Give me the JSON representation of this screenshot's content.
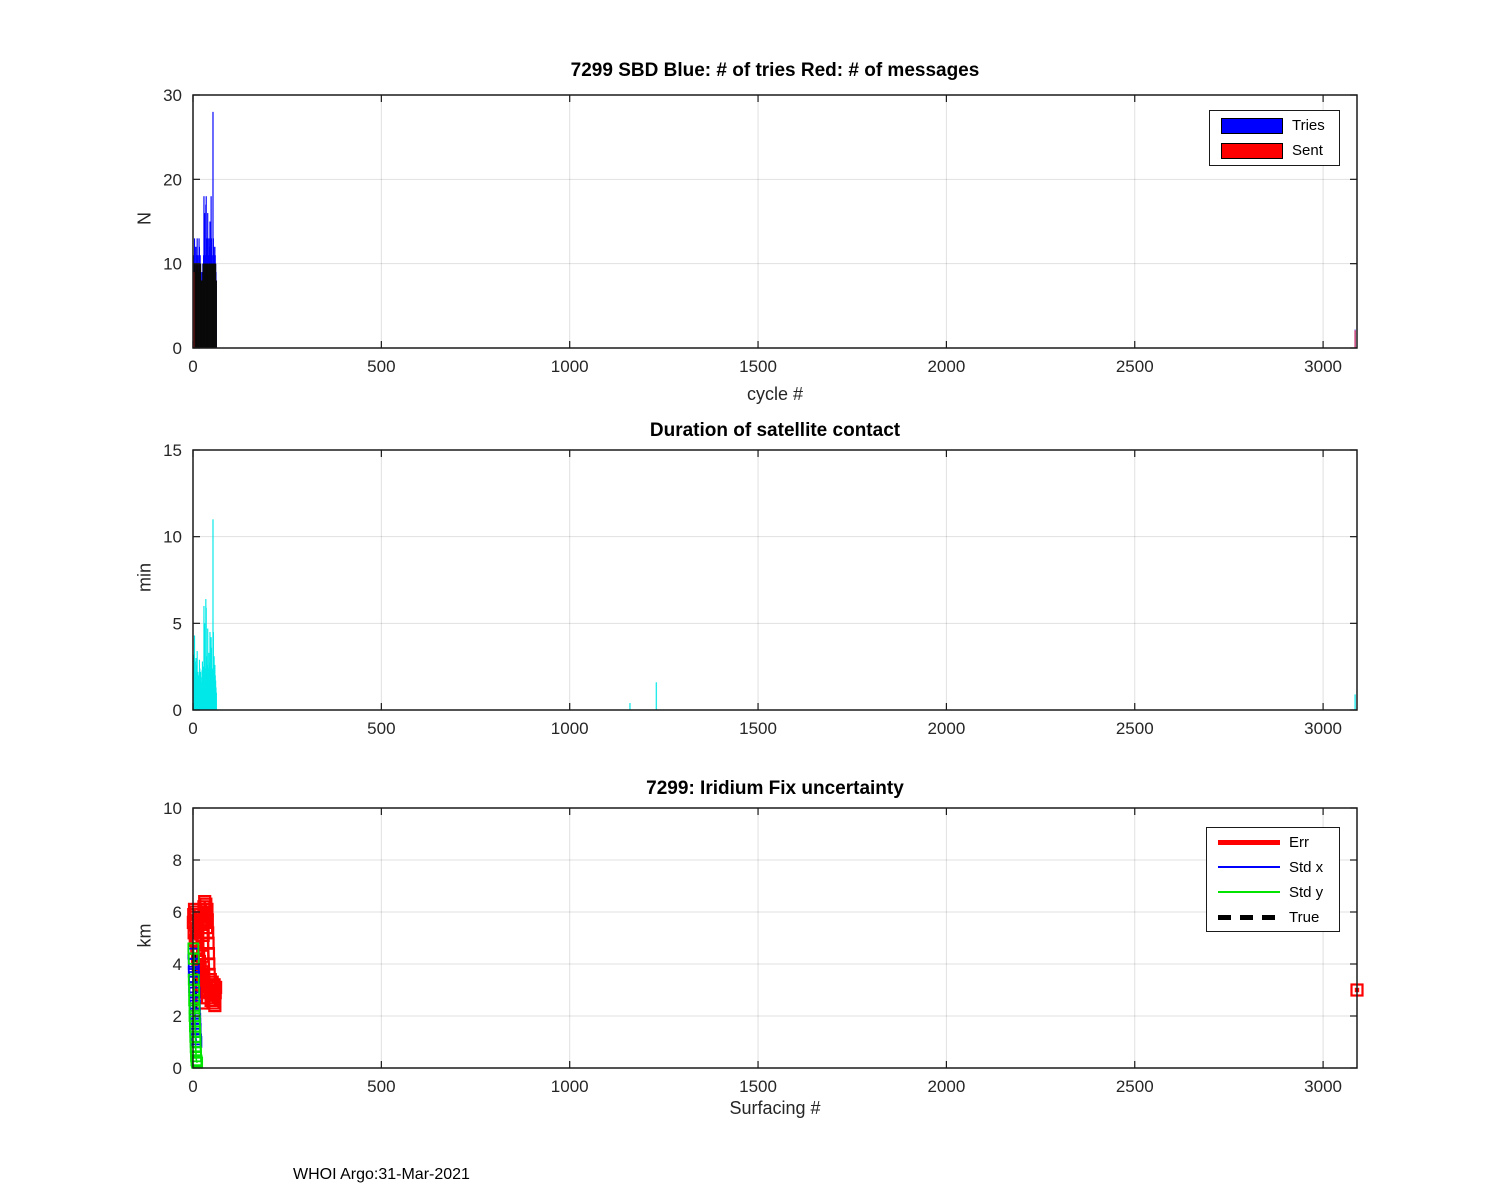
{
  "figure": {
    "footer": "WHOI Argo:31-Mar-2021",
    "background": "#ffffff",
    "axis_color": "#1a1a1a",
    "grid_color": "rgba(0,0,0,0.12)"
  },
  "chart_data": [
    {
      "id": "sbd-tries-messages",
      "type": "bar",
      "title": "7299 SBD  Blue: # of tries   Red: # of messages",
      "xlabel": "cycle #",
      "ylabel": "N",
      "xlim": [
        0,
        3090
      ],
      "ylim": [
        0,
        30
      ],
      "xticks": [
        0,
        500,
        1000,
        1500,
        2000,
        2500,
        3000
      ],
      "yticks": [
        0,
        10,
        20,
        30
      ],
      "grid": true,
      "x": [
        1,
        2,
        3,
        4,
        5,
        6,
        7,
        8,
        9,
        10,
        11,
        12,
        13,
        14,
        15,
        16,
        17,
        18,
        19,
        20,
        21,
        22,
        23,
        24,
        25,
        26,
        27,
        28,
        29,
        30,
        31,
        32,
        33,
        34,
        35,
        36,
        37,
        38,
        39,
        40,
        41,
        42,
        43,
        44,
        45,
        46,
        47,
        48,
        49,
        50,
        51,
        52,
        53,
        54,
        55,
        56,
        57,
        58,
        59,
        60,
        61,
        62
      ],
      "series": [
        {
          "name": "Tries",
          "color": "#0000ff",
          "values": [
            10,
            11,
            10,
            13,
            10,
            9,
            12,
            11,
            10,
            12,
            13,
            11,
            10,
            9,
            11,
            13,
            12,
            10,
            11,
            10,
            8,
            9,
            8,
            8,
            9,
            10,
            10,
            11,
            18,
            15,
            16,
            11,
            10,
            17,
            18,
            12,
            13,
            12,
            16,
            10,
            11,
            13,
            10,
            12,
            15,
            11,
            10,
            18,
            13,
            11,
            10,
            10,
            28,
            13,
            12,
            11,
            10,
            12,
            11,
            10,
            9,
            8
          ]
        },
        {
          "name": "Sent",
          "color": "#ff0000",
          "edge_color": "#000000",
          "values": [
            8,
            9,
            10,
            10,
            9,
            9,
            10,
            10,
            9,
            10,
            10,
            10,
            9,
            9,
            10,
            10,
            10,
            9,
            10,
            10,
            8,
            8,
            8,
            8,
            8,
            9,
            10,
            10,
            10,
            10,
            10,
            10,
            10,
            10,
            10,
            10,
            10,
            10,
            10,
            9,
            10,
            10,
            10,
            10,
            10,
            10,
            10,
            10,
            10,
            10,
            10,
            10,
            10,
            10,
            10,
            10,
            10,
            10,
            10,
            10,
            8,
            8
          ]
        }
      ],
      "outliers": [
        {
          "x": 3085,
          "tries": 2.2,
          "sent": 2.1
        }
      ],
      "legend": {
        "position": "top-right",
        "entries": [
          {
            "label": "Tries",
            "color": "#0000ff",
            "patch": true
          },
          {
            "label": "Sent",
            "color": "#ff0000",
            "patch": true
          }
        ]
      }
    },
    {
      "id": "satellite-contact",
      "type": "bar",
      "title": "Duration of satellite contact",
      "xlabel": "",
      "ylabel": "min",
      "xlim": [
        0,
        3090
      ],
      "ylim": [
        0,
        15
      ],
      "xticks": [
        0,
        500,
        1000,
        1500,
        2000,
        2500,
        3000
      ],
      "yticks": [
        0,
        5,
        10,
        15
      ],
      "grid": true,
      "color": "#00e8e8",
      "x": [
        1,
        2,
        3,
        4,
        5,
        6,
        7,
        8,
        9,
        10,
        11,
        12,
        13,
        14,
        15,
        16,
        17,
        18,
        19,
        20,
        21,
        22,
        23,
        24,
        25,
        26,
        27,
        28,
        29,
        30,
        31,
        32,
        33,
        34,
        35,
        36,
        37,
        38,
        39,
        40,
        41,
        42,
        43,
        44,
        45,
        46,
        47,
        48,
        49,
        50,
        51,
        52,
        53,
        54,
        55,
        56,
        57,
        58,
        59,
        60,
        61,
        62
      ],
      "values": [
        1.8,
        2.5,
        3.2,
        4.3,
        2.2,
        1.5,
        2.8,
        3.0,
        2.1,
        2.6,
        3.4,
        1.9,
        2.2,
        1.6,
        1.2,
        2.0,
        2.9,
        2.4,
        1.8,
        2.2,
        1.4,
        1.6,
        1.9,
        2.3,
        2.8,
        2.2,
        1.7,
        2.5,
        6.0,
        3.5,
        5.0,
        2.4,
        2.0,
        6.4,
        5.9,
        3.1,
        2.6,
        2.3,
        4.7,
        2.0,
        2.4,
        3.3,
        2.7,
        2.2,
        4.5,
        2.6,
        1.9,
        4.2,
        3.6,
        2.4,
        2.0,
        2.3,
        11.0,
        4.5,
        2.7,
        3.1,
        2.2,
        2.6,
        2.0,
        1.7,
        1.3,
        1.0
      ],
      "extra_points": [
        [
          1160,
          0.4
        ],
        [
          1230,
          1.6
        ],
        [
          3085,
          0.9
        ]
      ]
    },
    {
      "id": "iridium-fix-uncertainty",
      "type": "scatter",
      "title": "7299: Iridium Fix uncertainty",
      "xlabel": "Surfacing #",
      "ylabel": "km",
      "xlim": [
        0,
        3090
      ],
      "ylim": [
        0,
        10
      ],
      "xticks": [
        0,
        500,
        1000,
        1500,
        2000,
        2500,
        3000
      ],
      "yticks": [
        0,
        2,
        4,
        6,
        8,
        10
      ],
      "grid": true,
      "series": [
        {
          "name": "Err",
          "color": "#ff0000",
          "marker": "square",
          "marker_size": 11,
          "line_width": 2.4,
          "points": [
            [
              1,
              5.6
            ],
            [
              2,
              5.9
            ],
            [
              3,
              5.2
            ],
            [
              4,
              6.1
            ],
            [
              5,
              5.8
            ],
            [
              6,
              4.9
            ],
            [
              7,
              5.5
            ],
            [
              8,
              6.0
            ],
            [
              9,
              5.3
            ],
            [
              10,
              4.6
            ],
            [
              11,
              5.0
            ],
            [
              12,
              4.2
            ],
            [
              13,
              4.8
            ],
            [
              14,
              3.9
            ],
            [
              15,
              4.4
            ],
            [
              16,
              3.6
            ],
            [
              17,
              4.1
            ],
            [
              18,
              3.3
            ],
            [
              19,
              3.8
            ],
            [
              20,
              3.0
            ],
            [
              21,
              3.5
            ],
            [
              22,
              2.7
            ],
            [
              23,
              3.2
            ],
            [
              24,
              2.5
            ],
            [
              25,
              3.7
            ],
            [
              26,
              4.3
            ],
            [
              27,
              5.1
            ],
            [
              28,
              5.7
            ],
            [
              29,
              6.2
            ],
            [
              30,
              5.9
            ],
            [
              31,
              6.4
            ],
            [
              32,
              6.0
            ],
            [
              33,
              5.6
            ],
            [
              34,
              6.3
            ],
            [
              35,
              5.8
            ],
            [
              36,
              5.4
            ],
            [
              37,
              6.1
            ],
            [
              38,
              5.7
            ],
            [
              39,
              5.2
            ],
            [
              40,
              4.8
            ],
            [
              41,
              4.4
            ],
            [
              42,
              4.0
            ],
            [
              43,
              3.6
            ],
            [
              44,
              3.2
            ],
            [
              45,
              2.9
            ],
            [
              46,
              3.4
            ],
            [
              47,
              3.0
            ],
            [
              48,
              2.6
            ],
            [
              49,
              3.1
            ],
            [
              50,
              2.8
            ],
            [
              51,
              3.3
            ],
            [
              52,
              2.9
            ],
            [
              53,
              2.5
            ],
            [
              54,
              3.0
            ],
            [
              55,
              2.7
            ],
            [
              56,
              3.2
            ],
            [
              57,
              2.8
            ],
            [
              58,
              2.4
            ],
            [
              59,
              2.9
            ],
            [
              60,
              3.1
            ],
            [
              3090,
              3.0
            ]
          ]
        },
        {
          "name": "True",
          "color": "#000000",
          "marker": "none",
          "marker_size": 0,
          "line_width": 4,
          "dash": "7 5",
          "points": [
            [
              3,
              4.35
            ],
            [
              4,
              4.0
            ],
            [
              3,
              3.8
            ],
            [
              4,
              3.5
            ],
            [
              3,
              3.3
            ],
            [
              4,
              3.0
            ],
            [
              5,
              2.8
            ],
            [
              4,
              2.5
            ],
            [
              5,
              2.3
            ]
          ]
        },
        {
          "name": "Std x",
          "color": "#0000ff",
          "marker": "square",
          "marker_size": 10,
          "line_width": 1.6,
          "points": [
            [
              1,
              4.4
            ],
            [
              2,
              4.0
            ],
            [
              2,
              3.7
            ],
            [
              3,
              3.5
            ],
            [
              3,
              3.1
            ],
            [
              4,
              2.9
            ],
            [
              4,
              2.6
            ],
            [
              5,
              2.4
            ],
            [
              5,
              2.1
            ],
            [
              6,
              1.9
            ],
            [
              6,
              1.7
            ],
            [
              7,
              1.5
            ],
            [
              7,
              1.2
            ],
            [
              8,
              1.1
            ],
            [
              9,
              1.0
            ]
          ]
        },
        {
          "name": "Std y",
          "color": "#00e400",
          "marker": "square",
          "marker_size": 10,
          "line_width": 1.6,
          "points": [
            [
              1,
              4.6
            ],
            [
              2,
              4.2
            ],
            [
              2,
              3.4
            ],
            [
              3,
              3.0
            ],
            [
              3,
              2.6
            ],
            [
              4,
              2.3
            ],
            [
              4,
              2.0
            ],
            [
              5,
              1.8
            ],
            [
              5,
              1.6
            ],
            [
              6,
              1.4
            ],
            [
              6,
              1.2
            ],
            [
              7,
              1.0
            ],
            [
              7,
              0.8
            ],
            [
              8,
              0.6
            ],
            [
              8,
              0.45
            ],
            [
              9,
              0.3
            ],
            [
              10,
              0.25
            ],
            [
              11,
              0.2
            ]
          ]
        }
      ],
      "legend": {
        "position": "top-right",
        "entries": [
          {
            "label": "Err",
            "color": "#ff0000",
            "line_width": 5,
            "dash": false
          },
          {
            "label": "Std x",
            "color": "#0000ff",
            "line_width": 2.5,
            "dash": false
          },
          {
            "label": "Std y",
            "color": "#00e400",
            "line_width": 2.5,
            "dash": false
          },
          {
            "label": "True",
            "color": "#000000",
            "line_width": 5,
            "dash": true
          }
        ]
      }
    }
  ]
}
